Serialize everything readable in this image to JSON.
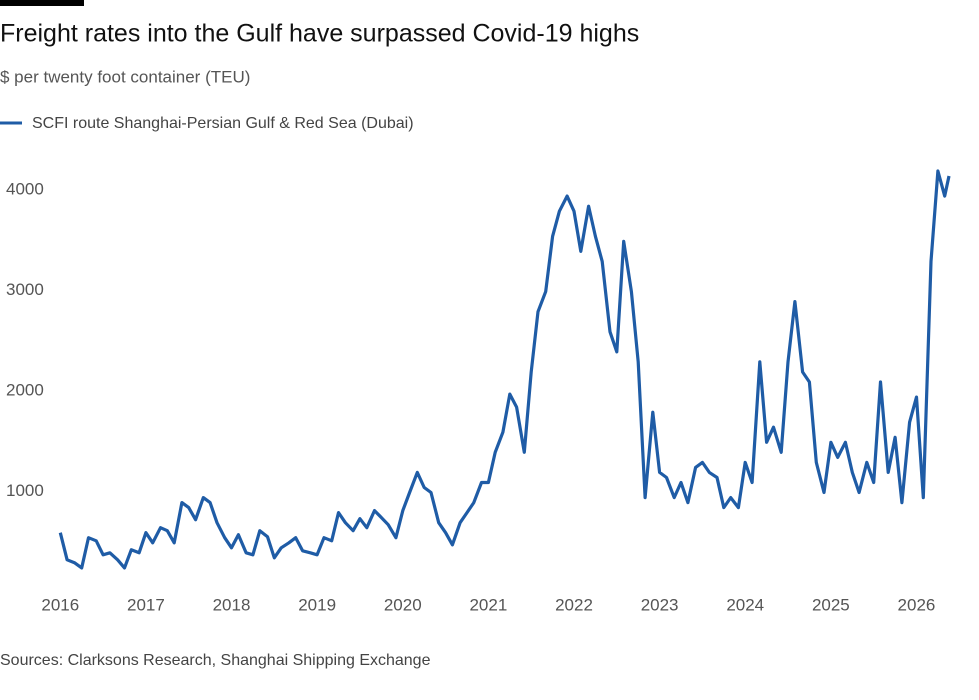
{
  "chart_data": {
    "type": "line",
    "title": "Freight rates into the Gulf have surpassed Covid-19 highs",
    "subtitle": "$ per twenty foot container (TEU)",
    "source": "Sources: Clarksons Research, Shanghai Shipping Exchange",
    "x": [
      2016.0,
      2016.08,
      2016.17,
      2016.25,
      2016.33,
      2016.42,
      2016.5,
      2016.58,
      2016.67,
      2016.75,
      2016.83,
      2016.92,
      2017.0,
      2017.08,
      2017.17,
      2017.25,
      2017.33,
      2017.42,
      2017.5,
      2017.58,
      2017.67,
      2017.75,
      2017.83,
      2017.92,
      2018.0,
      2018.08,
      2018.17,
      2018.25,
      2018.33,
      2018.42,
      2018.5,
      2018.58,
      2018.67,
      2018.75,
      2018.83,
      2018.92,
      2019.0,
      2019.08,
      2019.17,
      2019.25,
      2019.33,
      2019.42,
      2019.5,
      2019.58,
      2019.67,
      2019.75,
      2019.83,
      2019.92,
      2020.0,
      2020.08,
      2020.17,
      2020.25,
      2020.33,
      2020.42,
      2020.5,
      2020.58,
      2020.67,
      2020.75,
      2020.83,
      2020.92,
      2021.0,
      2021.08,
      2021.17,
      2021.25,
      2021.33,
      2021.42,
      2021.5,
      2021.58,
      2021.67,
      2021.75,
      2021.83,
      2021.92,
      2022.0,
      2022.08,
      2022.17,
      2022.25,
      2022.33,
      2022.42,
      2022.5,
      2022.58,
      2022.67,
      2022.75,
      2022.83,
      2022.92,
      2023.0,
      2023.08,
      2023.17,
      2023.25,
      2023.33,
      2023.42,
      2023.5,
      2023.58,
      2023.67,
      2023.75,
      2023.83,
      2023.92,
      2024.0,
      2024.08,
      2024.17,
      2024.25,
      2024.33,
      2024.42,
      2024.5,
      2024.58,
      2024.67,
      2024.75,
      2024.83,
      2024.92,
      2025.0,
      2025.08,
      2025.17,
      2025.25,
      2025.33,
      2025.42,
      2025.5,
      2025.58,
      2025.67,
      2025.75,
      2025.83,
      2025.92,
      2026.0,
      2026.08,
      2026.17,
      2026.25,
      2026.33,
      2026.38
    ],
    "series": [
      {
        "name": "SCFI route Shanghai-Persian Gulf & Red Sea (Dubai)",
        "color": "#1f5ca6",
        "values": [
          600,
          330,
          300,
          250,
          550,
          520,
          380,
          400,
          330,
          250,
          430,
          400,
          600,
          500,
          650,
          620,
          500,
          900,
          850,
          730,
          950,
          900,
          700,
          550,
          450,
          580,
          400,
          380,
          620,
          560,
          350,
          450,
          500,
          550,
          420,
          400,
          380,
          550,
          520,
          800,
          700,
          620,
          740,
          650,
          820,
          750,
          680,
          550,
          820,
          1000,
          1200,
          1050,
          1000,
          700,
          600,
          480,
          700,
          800,
          900,
          1100,
          1100,
          1400,
          1600,
          1980,
          1850,
          1400,
          2200,
          2800,
          3000,
          3550,
          3800,
          3950,
          3800,
          3400,
          3850,
          3550,
          3300,
          2600,
          2400,
          3500,
          3000,
          2300,
          950,
          1800,
          1200,
          1150,
          950,
          1100,
          900,
          1250,
          1300,
          1200,
          1150,
          850,
          950,
          850,
          1300,
          1100,
          2300,
          1500,
          1650,
          1400,
          2300,
          2900,
          2200,
          2100,
          1300,
          1000,
          1500,
          1350,
          1500,
          1200,
          1000,
          1300,
          1100,
          2100,
          1200,
          1550,
          900,
          1700,
          1950,
          950,
          3300,
          4200,
          3950,
          4150
        ]
      }
    ],
    "xlim": [
      2015.95,
      2026.45
    ],
    "xticks": [
      2016,
      2017,
      2018,
      2019,
      2020,
      2021,
      2022,
      2023,
      2024,
      2025,
      2026
    ],
    "ylim": [
      0,
      4250
    ],
    "yticks": [
      1000,
      2000,
      3000,
      4000
    ]
  }
}
